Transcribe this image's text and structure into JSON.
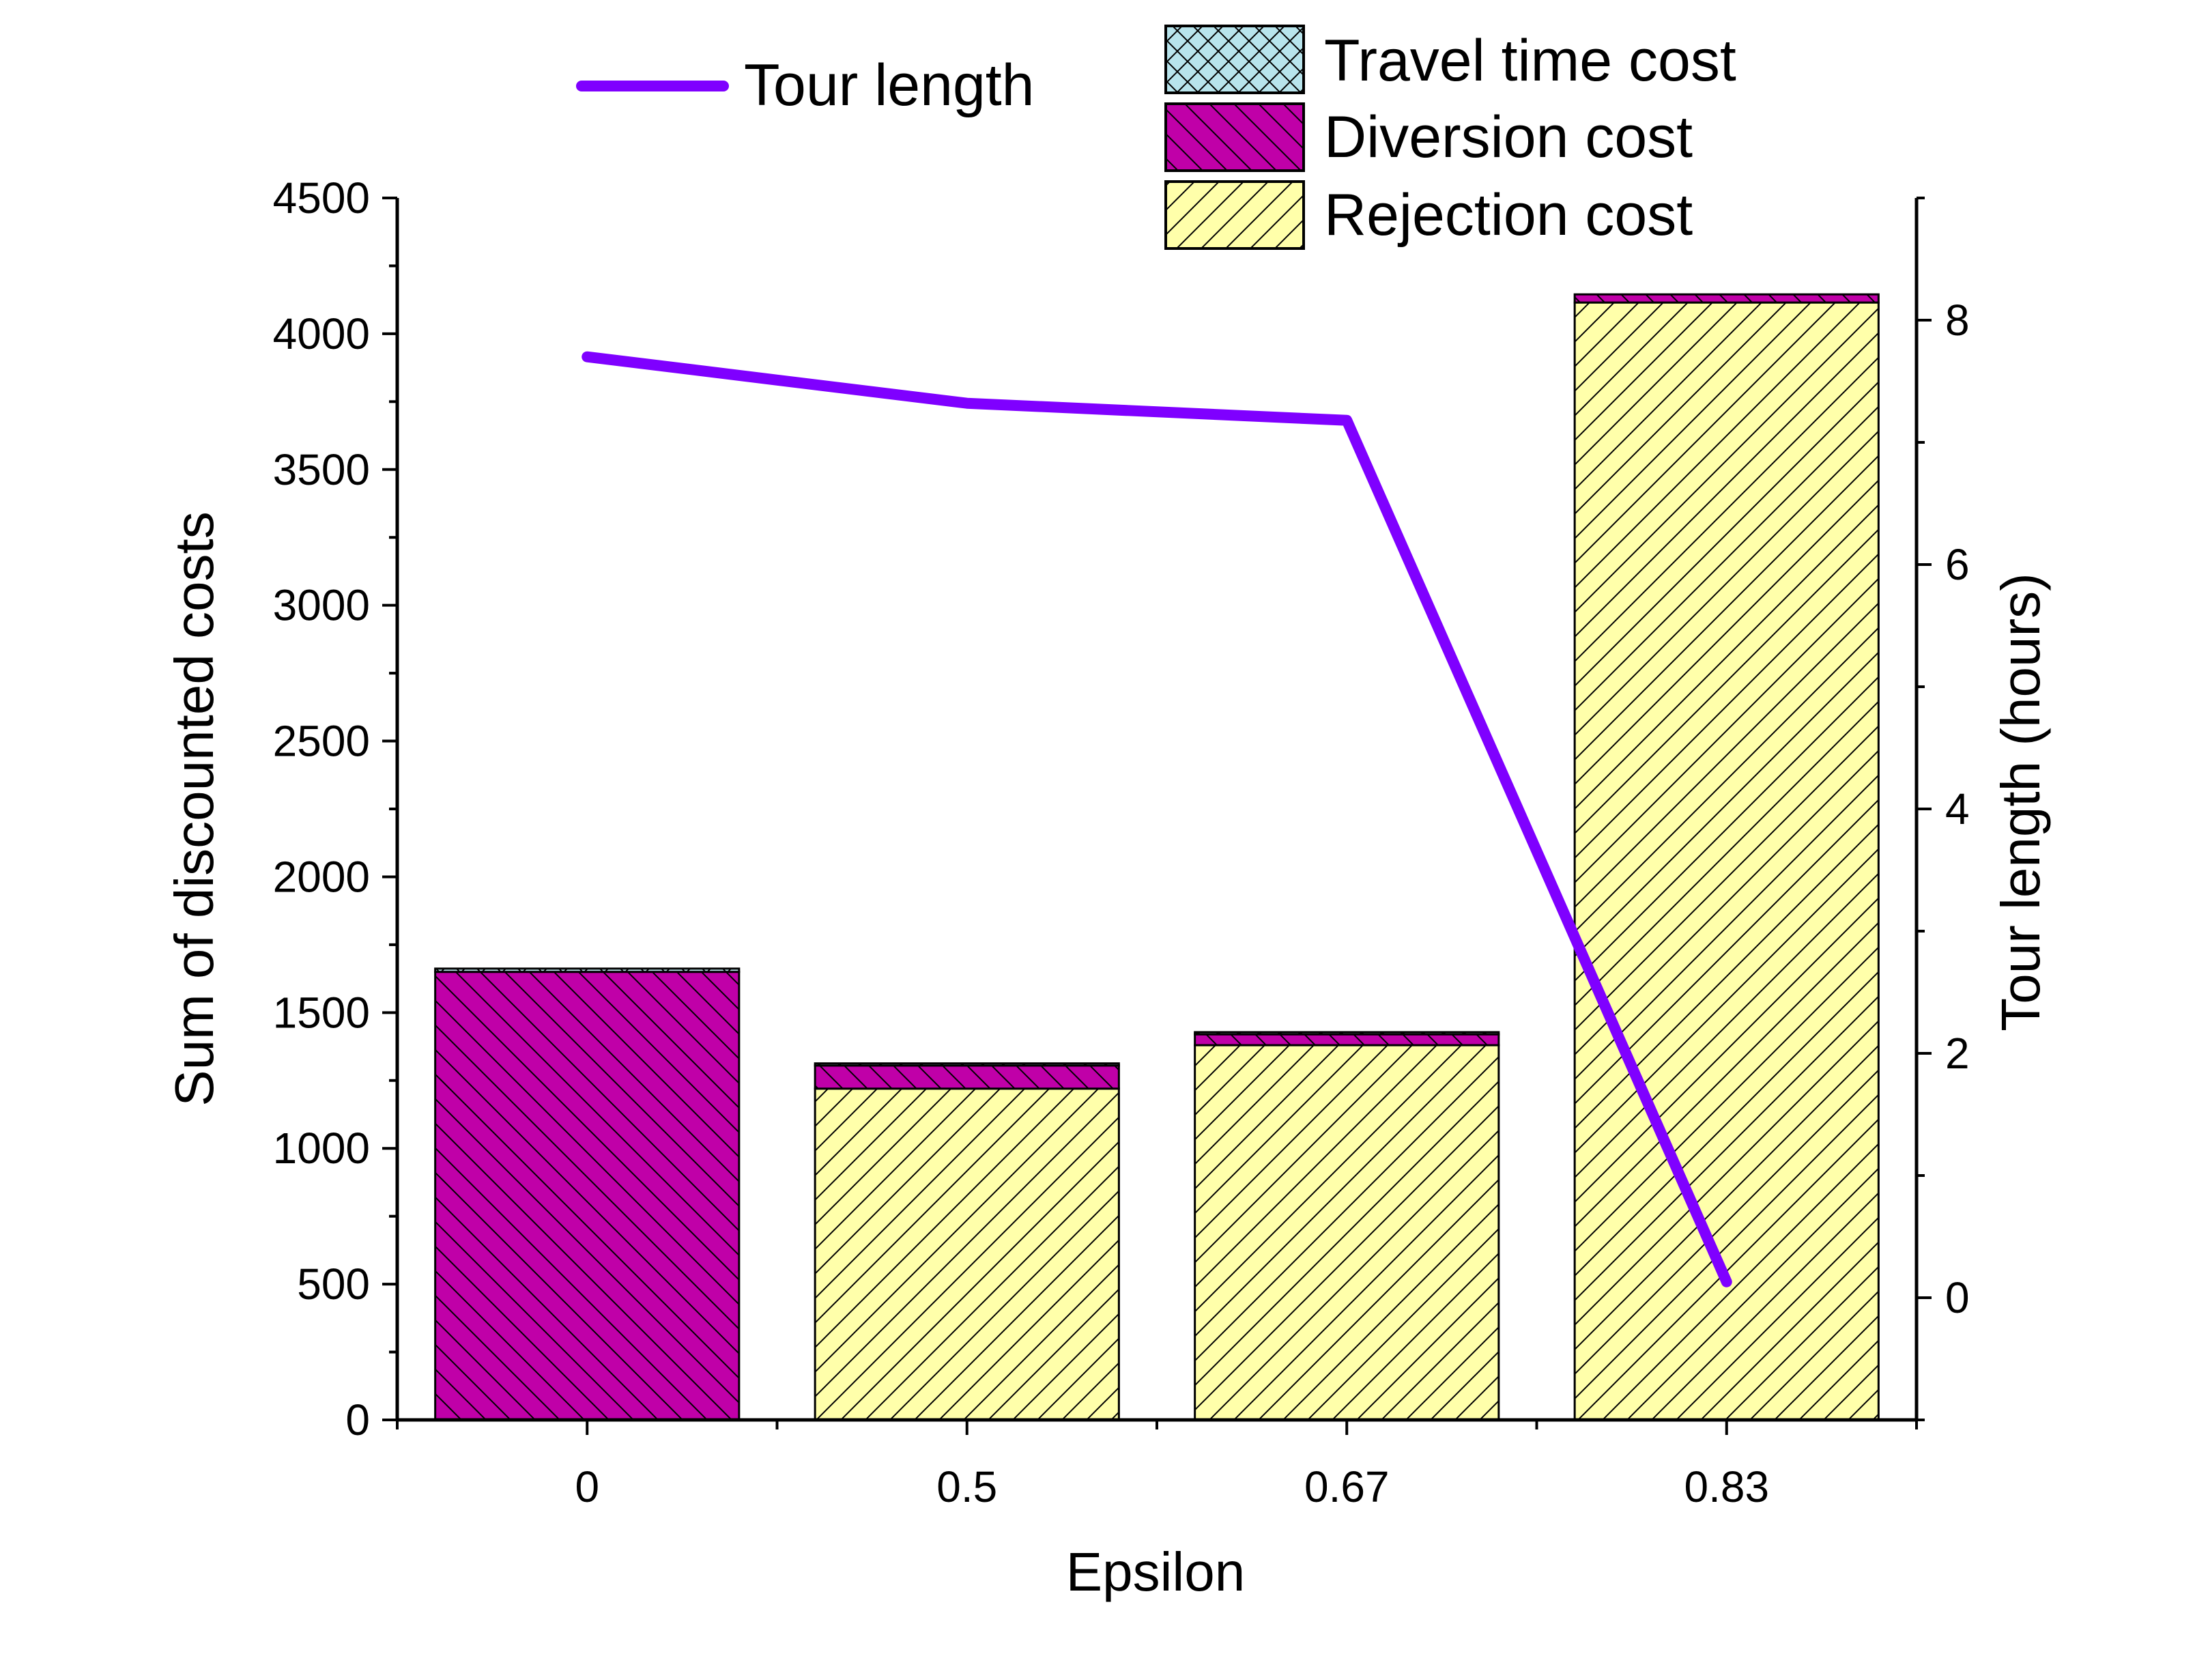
{
  "chart_data": {
    "type": "bar",
    "stacked": true,
    "categories": [
      "0",
      "0.5",
      "0.67",
      "0.83"
    ],
    "xlabel": "Epsilon",
    "ylabel": "Sum of discounted costs",
    "y2label": "Tour length (hours)",
    "ylim": [
      0,
      4500
    ],
    "yticks": [
      "0",
      "500",
      "1000",
      "1500",
      "2000",
      "2500",
      "3000",
      "3500",
      "4000",
      "4500"
    ],
    "y2lim": [
      -1,
      9
    ],
    "y2ticks": [
      "0",
      "2",
      "4",
      "6",
      "8"
    ],
    "series": [
      {
        "name": "Rejection cost",
        "values": [
          0,
          1220,
          1380,
          4115
        ],
        "color": "#ffffaa",
        "pattern": "diagonal-hatch-forward",
        "legend_label": "Rejection cost"
      },
      {
        "name": "Diversion cost",
        "values": [
          1650,
          85,
          40,
          30
        ],
        "color": "#c000a8",
        "pattern": "diagonal-hatch-backward",
        "legend_label": "Diversion cost"
      },
      {
        "name": "Travel time cost",
        "values": [
          12,
          8,
          8,
          0
        ],
        "color": "#b8e4ec",
        "pattern": "cross-hatch",
        "legend_label": "Travel time cost"
      }
    ],
    "line_series": {
      "name": "Tour length",
      "legend_label": "Tour length",
      "axis": "right",
      "values": [
        7.7,
        7.32,
        7.18,
        0.13
      ],
      "color": "#7f00ff"
    },
    "grid": false,
    "legend_position": "top"
  }
}
